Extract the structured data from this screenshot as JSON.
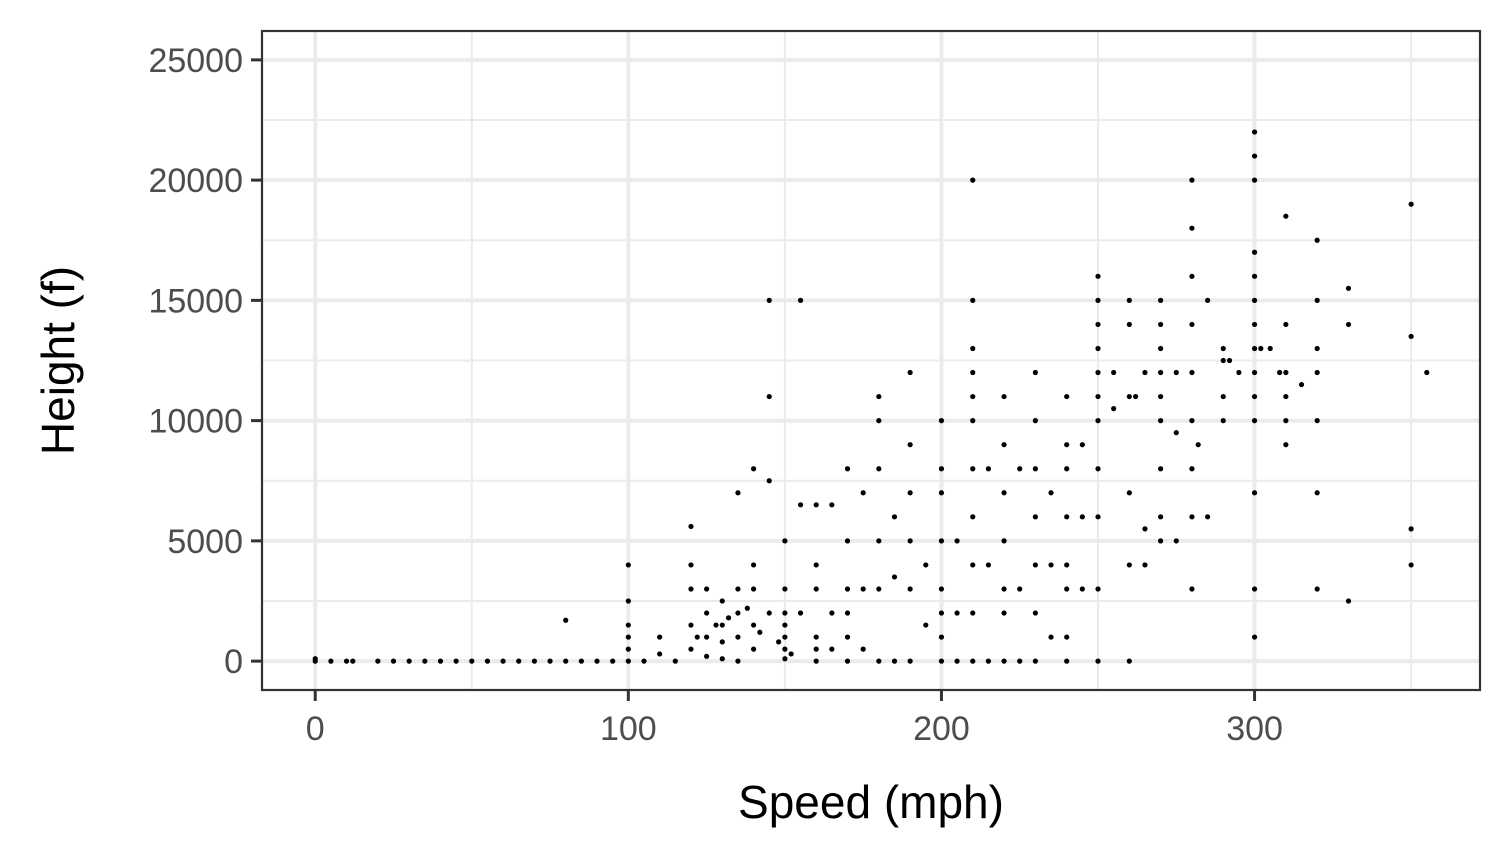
{
  "chart_data": {
    "type": "scatter",
    "title": "",
    "xlabel": "Speed (mph)",
    "ylabel": "Height (f)",
    "xlim": [
      -17,
      372
    ],
    "ylim": [
      -1200,
      26200
    ],
    "x_ticks": [
      0,
      100,
      200,
      300
    ],
    "x_tick_labels": [
      "0",
      "100",
      "200",
      "300"
    ],
    "y_ticks": [
      0,
      5000,
      10000,
      15000,
      20000,
      25000
    ],
    "y_tick_labels": [
      "0",
      "5000",
      "10000",
      "15000",
      "20000",
      "25000"
    ],
    "grid": true,
    "legend": "none",
    "colors": {
      "point": "#000000",
      "grid": "#ebebeb",
      "panel_border": "#333333",
      "tick_text": "#4d4d4d"
    },
    "series": [
      {
        "x": [
          0,
          0,
          5,
          10,
          12,
          20,
          25,
          30,
          35,
          40,
          45,
          50,
          55,
          60,
          65,
          70,
          75,
          80,
          80,
          85,
          90,
          95,
          100,
          100,
          100,
          100,
          100,
          100,
          105,
          110,
          110,
          115,
          120,
          120,
          120,
          120,
          120,
          122,
          125,
          125,
          125,
          125,
          128,
          130,
          130,
          130,
          130,
          132,
          135,
          135,
          135,
          135,
          135,
          138,
          140,
          140,
          140,
          140,
          140,
          142,
          145,
          145,
          145,
          145,
          148,
          150,
          150,
          150,
          150,
          150,
          150,
          150,
          152,
          155,
          155,
          155,
          160,
          160,
          160,
          160,
          160,
          160,
          165,
          165,
          165,
          170,
          170,
          170,
          170,
          170,
          170,
          175,
          175,
          175,
          180,
          180,
          180,
          180,
          180,
          180,
          185,
          185,
          185,
          190,
          190,
          190,
          190,
          190,
          190,
          195,
          195,
          200,
          200,
          200,
          200,
          200,
          200,
          200,
          200,
          205,
          205,
          205,
          210,
          210,
          210,
          210,
          210,
          210,
          210,
          210,
          210,
          210,
          210,
          215,
          215,
          215,
          220,
          220,
          220,
          220,
          220,
          220,
          220,
          225,
          225,
          225,
          230,
          230,
          230,
          230,
          230,
          230,
          230,
          235,
          235,
          235,
          240,
          240,
          240,
          240,
          240,
          240,
          240,
          240,
          245,
          245,
          245,
          250,
          250,
          250,
          250,
          250,
          250,
          250,
          250,
          250,
          250,
          250,
          255,
          255,
          260,
          260,
          260,
          260,
          260,
          260,
          262,
          265,
          265,
          265,
          270,
          270,
          270,
          270,
          270,
          270,
          270,
          270,
          270,
          275,
          275,
          275,
          280,
          280,
          280,
          280,
          280,
          280,
          280,
          280,
          280,
          282,
          285,
          285,
          290,
          290,
          290,
          290,
          292,
          295,
          300,
          300,
          300,
          300,
          300,
          300,
          300,
          300,
          300,
          300,
          300,
          300,
          300,
          300,
          302,
          305,
          308,
          310,
          310,
          310,
          310,
          310,
          310,
          315,
          320,
          320,
          320,
          320,
          320,
          320,
          320,
          330,
          330,
          330,
          350,
          350,
          350,
          350,
          355
        ],
        "y": [
          0,
          100,
          0,
          0,
          0,
          0,
          0,
          0,
          0,
          0,
          0,
          0,
          0,
          0,
          0,
          0,
          0,
          1700,
          0,
          0,
          0,
          0,
          4000,
          2500,
          1500,
          1000,
          500,
          0,
          0,
          1000,
          300,
          0,
          5600,
          4000,
          3000,
          1500,
          500,
          1000,
          3000,
          2000,
          1000,
          200,
          1500,
          2500,
          1500,
          800,
          100,
          1800,
          7000,
          3000,
          2000,
          1000,
          0,
          2200,
          8000,
          4000,
          3000,
          1500,
          500,
          1200,
          15000,
          11000,
          7500,
          2000,
          800,
          5000,
          3000,
          1500,
          1000,
          500,
          100,
          2000,
          300,
          15000,
          6500,
          2000,
          6500,
          4000,
          3000,
          1000,
          500,
          0,
          6500,
          2000,
          500,
          8000,
          5000,
          3000,
          2000,
          1000,
          0,
          7000,
          3000,
          500,
          11000,
          10000,
          8000,
          5000,
          3000,
          0,
          6000,
          3500,
          0,
          12000,
          9000,
          7000,
          5000,
          3000,
          0,
          4000,
          1500,
          10000,
          8000,
          7000,
          5000,
          3000,
          2000,
          1000,
          0,
          5000,
          2000,
          0,
          20000,
          15000,
          13000,
          12000,
          11000,
          10000,
          8000,
          6000,
          4000,
          2000,
          0,
          8000,
          4000,
          0,
          11000,
          9000,
          7000,
          5000,
          3000,
          2000,
          0,
          8000,
          3000,
          0,
          12000,
          10000,
          8000,
          6000,
          4000,
          2000,
          0,
          7000,
          4000,
          1000,
          11000,
          9000,
          8000,
          6000,
          4000,
          3000,
          1000,
          0,
          9000,
          6000,
          3000,
          16000,
          15000,
          14000,
          13000,
          12000,
          11000,
          10000,
          8000,
          6000,
          3000,
          0,
          12000,
          10500,
          15000,
          14000,
          11000,
          7000,
          4000,
          0,
          11000,
          12000,
          4000,
          5500,
          15000,
          14000,
          13000,
          12000,
          11000,
          10000,
          8000,
          6000,
          5000,
          12000,
          9500,
          5000,
          20000,
          18000,
          16000,
          14000,
          12000,
          10000,
          8000,
          6000,
          3000,
          9000,
          15000,
          6000,
          13000,
          12500,
          11000,
          10000,
          12500,
          12000,
          22000,
          21000,
          20000,
          17000,
          16000,
          15000,
          14000,
          13000,
          12000,
          11000,
          10000,
          7000,
          3000,
          1000,
          13000,
          13000,
          12000,
          18500,
          14000,
          12000,
          11000,
          10000,
          9000,
          11500,
          17500,
          15000,
          13000,
          12000,
          10000,
          7000,
          3000,
          15500,
          14000,
          2500,
          19000,
          13500,
          5500,
          4000,
          12000
        ]
      }
    ]
  }
}
